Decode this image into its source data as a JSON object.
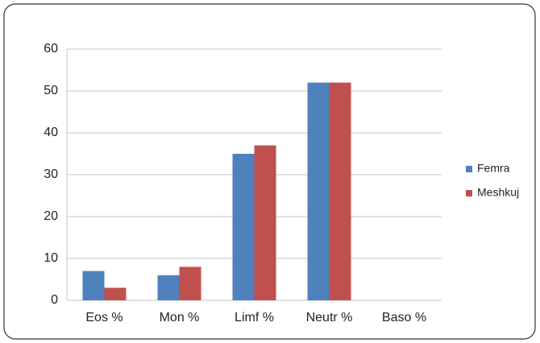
{
  "chart_data": {
    "type": "bar",
    "categories": [
      "Eos %",
      "Mon %",
      "Limf %",
      "Neutr %",
      "Baso %"
    ],
    "series": [
      {
        "name": "Femra",
        "color": "#4f81bd",
        "values": [
          7,
          6,
          35,
          52,
          0
        ]
      },
      {
        "name": "Meshkuj",
        "color": "#c0504d",
        "values": [
          3,
          8,
          37,
          52,
          0
        ]
      }
    ],
    "ylim": [
      0,
      60
    ],
    "yticks": [
      0,
      10,
      20,
      30,
      40,
      50,
      60
    ],
    "grid": true,
    "legend": "right"
  }
}
